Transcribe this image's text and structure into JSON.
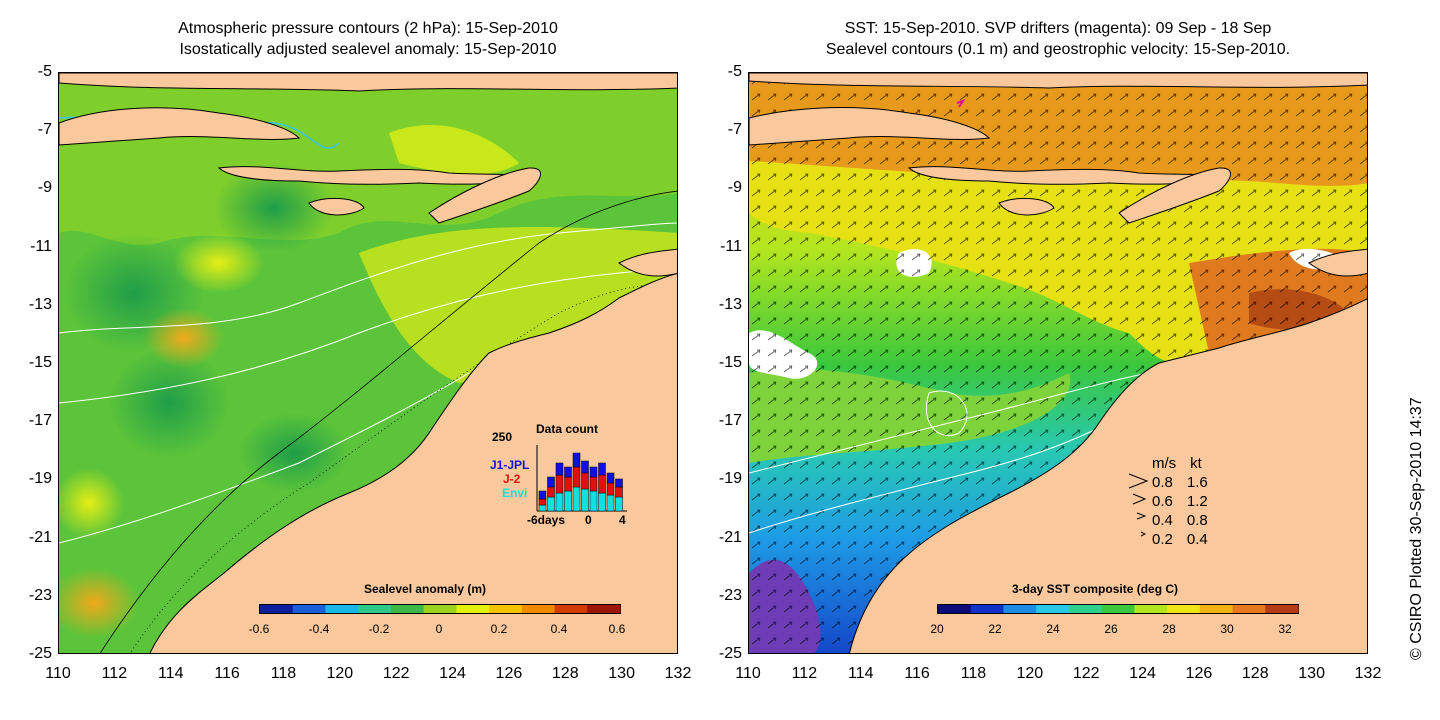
{
  "left_panel": {
    "title_lines": [
      "Atmospheric pressure contours (2 hPa): 15-Sep-2010",
      "Isostatically adjusted sealevel anomaly: 15-Sep-2010"
    ],
    "y_ticks": [
      "-5",
      "-7",
      "-9",
      "-11",
      "-13",
      "-15",
      "-17",
      "-19",
      "-21",
      "-23",
      "-25"
    ],
    "x_ticks": [
      "110",
      "112",
      "114",
      "116",
      "118",
      "120",
      "122",
      "124",
      "126",
      "128",
      "130",
      "132"
    ],
    "colorbar": {
      "label": "Sealevel anomaly (m)",
      "ticks": [
        "-0.6",
        "-0.4",
        "-0.2",
        "0",
        "0.2",
        "0.4",
        "0.6"
      ],
      "colors": [
        "#0a1e9e",
        "#1a5fd8",
        "#19b7e6",
        "#2fca8a",
        "#3fb84a",
        "#9ad21e",
        "#e2f20a",
        "#f5c400",
        "#f08a00",
        "#d23c00",
        "#9a1400"
      ]
    },
    "inset": {
      "title": "Data count",
      "ymax_label": "250",
      "legend": [
        {
          "name": "J1-JPL",
          "color": "#1010e0"
        },
        {
          "name": "J-2",
          "color": "#e01010"
        },
        {
          "name": "Envi",
          "color": "#10e0e0"
        }
      ],
      "x_labels": [
        "-6days",
        "0",
        "4"
      ]
    }
  },
  "right_panel": {
    "title_lines": [
      "SST: 15-Sep-2010. SVP drifters (magenta): 09 Sep - 18 Sep",
      "Sealevel contours (0.1 m) and geostrophic velocity: 15-Sep-2010."
    ],
    "y_ticks": [
      "-5",
      "-7",
      "-9",
      "-11",
      "-13",
      "-15",
      "-17",
      "-19",
      "-21",
      "-23",
      "-25"
    ],
    "x_ticks": [
      "110",
      "112",
      "114",
      "116",
      "118",
      "120",
      "122",
      "124",
      "126",
      "128",
      "130",
      "132"
    ],
    "colorbar": {
      "label": "3-day SST composite (deg C)",
      "ticks": [
        "20",
        "22",
        "24",
        "26",
        "28",
        "30",
        "32"
      ],
      "colors": [
        "#0a0a78",
        "#1030c8",
        "#1e8ce6",
        "#28c8e6",
        "#2ed090",
        "#3cc83c",
        "#b4e61e",
        "#f0e614",
        "#f0b414",
        "#e6781e",
        "#b43c14"
      ]
    },
    "velocity_legend": {
      "header_ms": "m/s",
      "header_kt": "kt",
      "rows": [
        {
          "ms": "0.8",
          "kt": "1.6"
        },
        {
          "ms": "0.6",
          "kt": "1.2"
        },
        {
          "ms": "0.4",
          "kt": "0.8"
        },
        {
          "ms": "0.2",
          "kt": "0.4"
        }
      ]
    }
  },
  "credit": "© CSIRO Plotted 30-Sep-2010 14:37",
  "colors": {
    "land": "#f9c89c",
    "missing": "#ffffff"
  }
}
